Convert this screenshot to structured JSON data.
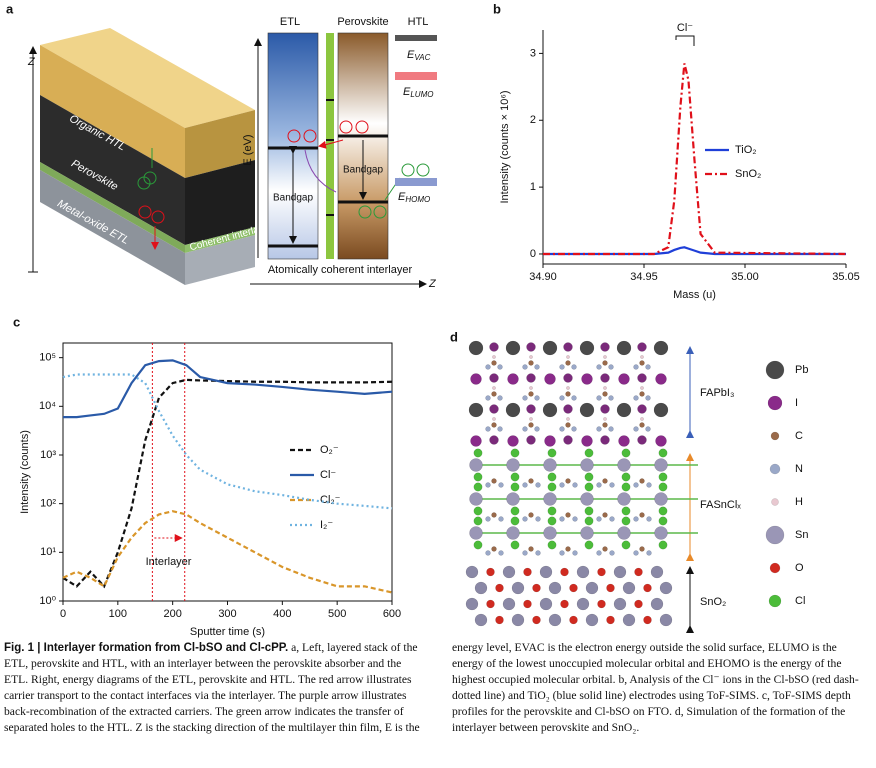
{
  "panel_a": {
    "label": "a",
    "z_axis": "Z",
    "stack_layers": [
      "Organic HTL",
      "Perovskite",
      "Metal-oxide ETL",
      "Coherent interlayer"
    ],
    "columns": [
      "ETL",
      "Perovskite",
      "HTL"
    ],
    "energy_axis": "E (eV)",
    "levels": {
      "vac": {
        "symbol": "E",
        "sub": "VAC"
      },
      "lumo": {
        "symbol": "E",
        "sub": "LUMO"
      },
      "homo": {
        "symbol": "E",
        "sub": "HOMO"
      }
    },
    "bandgap": [
      "Bandgap",
      "Bandgap"
    ],
    "interlayer_label": "Atomically coherent interlayer",
    "z_axis_2": "Z"
  },
  "chart_data": [
    {
      "type": "line",
      "panel": "b",
      "xlabel": "Mass (u)",
      "ylabel": "Intensity (counts × 10⁶)",
      "x": [
        34.9,
        34.955,
        34.962,
        34.965,
        34.968,
        34.97,
        34.972,
        34.975,
        34.978,
        34.985,
        35.05
      ],
      "series": [
        {
          "name": "TiO₂",
          "color": "#1f3fd8",
          "line_style": "solid",
          "values": [
            0,
            0,
            0.02,
            0.06,
            0.09,
            0.1,
            0.08,
            0.05,
            0.02,
            0,
            0
          ]
        },
        {
          "name": "SnO₂",
          "color": "#e0101a",
          "line_style": "dash-dot",
          "values": [
            0,
            0,
            0.1,
            0.8,
            2.2,
            2.85,
            2.6,
            1.4,
            0.3,
            0.02,
            0
          ]
        }
      ],
      "xlim": [
        34.9,
        35.05
      ],
      "xticks": [
        {
          "value": 34.9,
          "label": "34.90"
        },
        34.95,
        {
          "value": 35.0,
          "label": "35.00"
        },
        35.05
      ],
      "ylim": [
        -0.15,
        3.35
      ],
      "yticks": [
        0,
        1,
        2,
        3
      ],
      "annotation": "Cl⁻",
      "legend": "right",
      "frame": "axes"
    },
    {
      "type": "line",
      "panel": "c",
      "xlabel": "Sputter time (s)",
      "ylabel": "Intensity (counts)",
      "x": [
        0,
        25,
        50,
        75,
        100,
        125,
        150,
        175,
        200,
        225,
        250,
        300,
        350,
        400,
        450,
        500,
        550,
        600
      ],
      "series": [
        {
          "name": "O₂⁻",
          "color": "#111111",
          "line_style": "dashed",
          "values": [
            3,
            2,
            4,
            2,
            10,
            80,
            2000,
            15000,
            30000,
            35000,
            34000,
            33000,
            32000,
            32000,
            31000,
            31000,
            31000,
            32000
          ]
        },
        {
          "name": "Cl⁻",
          "color": "#2a5aa8",
          "line_style": "solid",
          "values": [
            6000,
            6000,
            6500,
            7000,
            9000,
            30000,
            70000,
            85000,
            88000,
            70000,
            40000,
            30000,
            28000,
            25000,
            22000,
            20000,
            18000,
            20000
          ]
        },
        {
          "name": "Cl₂⁻",
          "color": "#d9962a",
          "line_style": "dashed",
          "values": [
            3,
            4,
            3,
            2,
            8,
            20,
            40,
            60,
            70,
            60,
            40,
            20,
            10,
            5,
            3,
            2,
            2,
            1.5
          ]
        },
        {
          "name": "I₂⁻",
          "color": "#6fb3e0",
          "line_style": "dotted",
          "values": [
            40000,
            45000,
            45000,
            45000,
            45000,
            45000,
            30000,
            8000,
            2500,
            1000,
            500,
            250,
            180,
            150,
            120,
            100,
            90,
            80
          ]
        }
      ],
      "xlim": [
        0,
        600
      ],
      "xticks": [
        0,
        100,
        200,
        300,
        400,
        500,
        600
      ],
      "ylim": [
        1,
        200000
      ],
      "log_y": true,
      "yticks": [
        {
          "value": 1,
          "label": "10⁰"
        },
        {
          "value": 10,
          "label": "10¹"
        },
        {
          "value": 100,
          "label": "10²"
        },
        {
          "value": 1000,
          "label": "10³"
        },
        {
          "value": 10000,
          "label": "10⁴"
        },
        {
          "value": 100000,
          "label": "10⁵"
        }
      ],
      "vlines": [
        163,
        222
      ],
      "annotation": "Interlayer",
      "legend": "center-right",
      "frame": "box"
    }
  ],
  "panel_d": {
    "label": "d",
    "regions": [
      "FAPbI₃",
      "FASnClₓ",
      "SnO₂"
    ],
    "legend": [
      "Pb",
      "I",
      "C",
      "N",
      "H",
      "Sn",
      "O",
      "Cl"
    ]
  },
  "caption": {
    "title": "Fig. 1 | Interlayer formation from Cl-bSO and Cl-cPP.",
    "body": "a, Left, layered stack of the ETL, perovskite and HTL, with an interlayer between the perovskite absorber and the ETL. Right, energy diagrams of the ETL, perovskite and HTL. The red arrow illustrates carrier transport to the contact interfaces via the interlayer. The purple arrow illustrates back-recombination of the extracted carriers. The green arrow indicates the transfer of separated holes to the HTL. Z is the stacking direction of the multilayer thin film, E is the energy level, EVAC is the electron energy outside the solid surface, ELUMO is the energy of the lowest unoccupied molecular orbital and EHOMO is the energy of the highest occupied molecular orbital. b, Analysis of the Cl⁻ ions in the Cl-bSO (red dash-dotted line) and TiO₂ (blue solid line) electrodes using ToF-SIMS. c, ToF-SIMS depth profiles for the perovskite and Cl-bSO on FTO. d, Simulation of the formation of the interlayer between perovskite and SnO₂."
  }
}
